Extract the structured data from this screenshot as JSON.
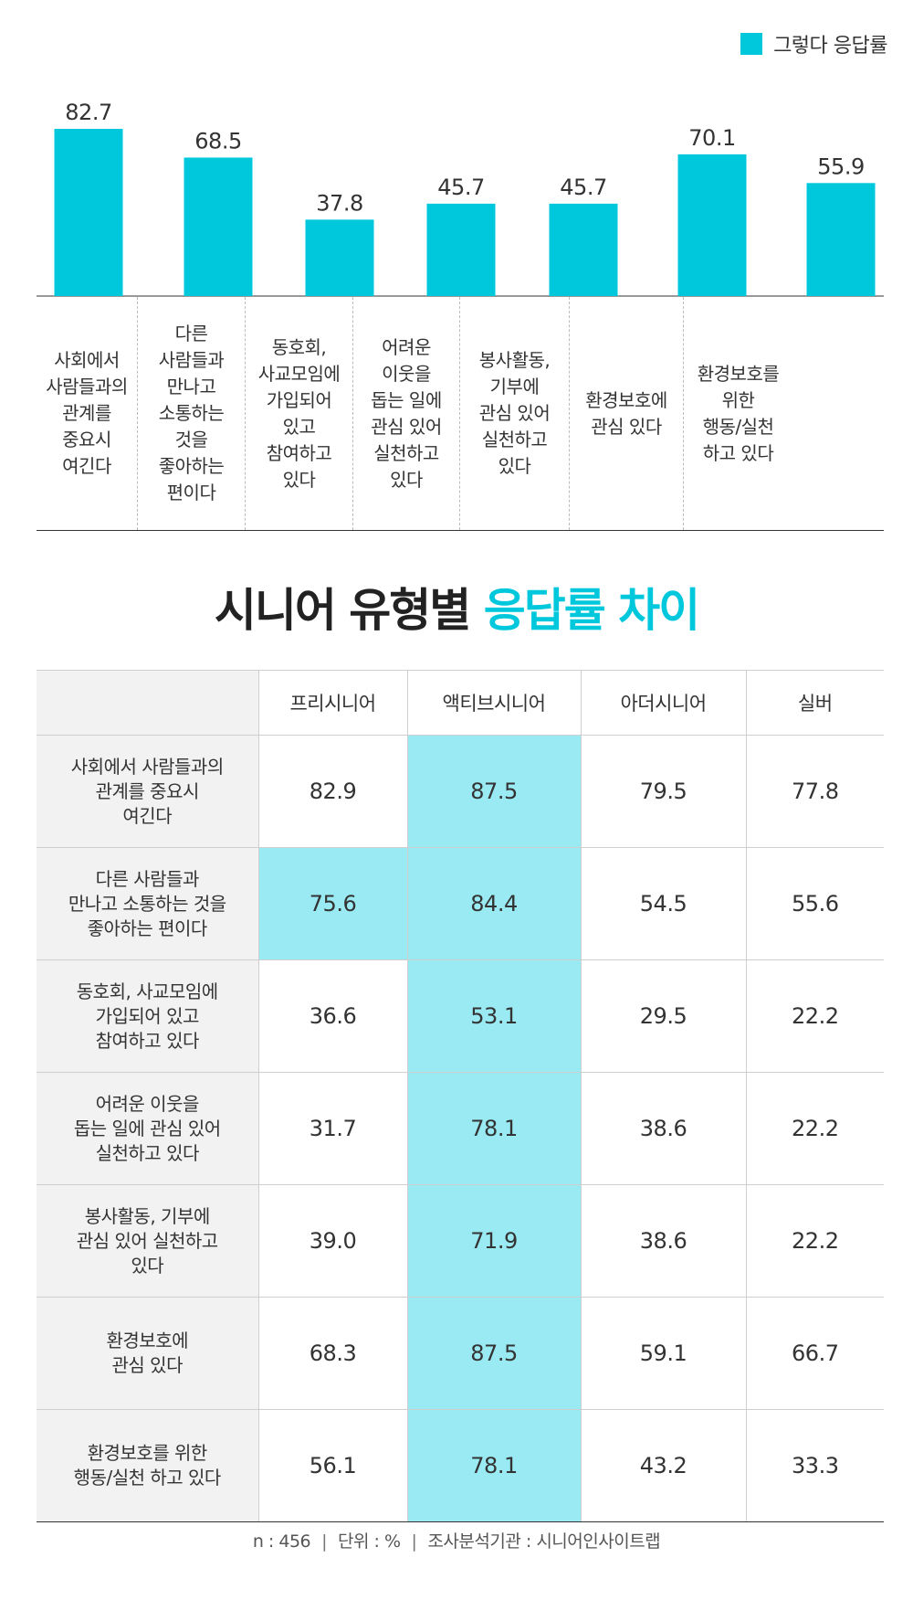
{
  "legend": {
    "label": "그렇다 응답률",
    "color": "#00c8dc"
  },
  "chart_data": {
    "type": "bar",
    "categories": [
      "사회에서\n사람들과의\n관계를\n중요시\n여긴다",
      "다른\n사람들과\n만나고\n소통하는\n것을\n좋아하는\n편이다",
      "동호회,\n사교모임에\n가입되어\n있고\n참여하고\n있다",
      "어려운\n이웃을\n돕는 일에\n관심 있어\n실천하고\n있다",
      "봉사활동,\n기부에\n관심 있어\n실천하고\n있다",
      "환경보호에\n관심 있다",
      "환경보호를\n위한\n행동/실천\n하고 있다"
    ],
    "values": [
      82.7,
      68.5,
      37.8,
      45.7,
      45.7,
      70.1,
      55.9
    ],
    "value_labels": [
      "82.7",
      "68.5",
      "37.8",
      "45.7",
      "45.7",
      "70.1",
      "55.9"
    ],
    "series": [
      {
        "name": "그렇다 응답률",
        "color": "#00c8dc"
      }
    ],
    "ylim": [
      0,
      100
    ],
    "grid": false,
    "legend_position": "top-right"
  },
  "heading": {
    "part1": "시니어 유형별 ",
    "part2": "응답률 차이"
  },
  "table": {
    "columns": [
      "",
      "프리시니어",
      "액티브시니어",
      "아더시니어",
      "실버"
    ],
    "rows": [
      {
        "label": "사회에서 사람들과의\n관계를 중요시\n여긴다",
        "values": [
          "82.9",
          "87.5",
          "79.5",
          "77.8"
        ],
        "highlight": [
          false,
          true,
          false,
          false
        ]
      },
      {
        "label": "다른 사람들과\n만나고 소통하는 것을\n좋아하는 편이다",
        "values": [
          "75.6",
          "84.4",
          "54.5",
          "55.6"
        ],
        "highlight": [
          true,
          true,
          false,
          false
        ]
      },
      {
        "label": "동호회, 사교모임에\n가입되어 있고\n참여하고 있다",
        "values": [
          "36.6",
          "53.1",
          "29.5",
          "22.2"
        ],
        "highlight": [
          false,
          true,
          false,
          false
        ]
      },
      {
        "label": "어려운 이웃을\n돕는 일에 관심 있어\n실천하고 있다",
        "values": [
          "31.7",
          "78.1",
          "38.6",
          "22.2"
        ],
        "highlight": [
          false,
          true,
          false,
          false
        ]
      },
      {
        "label": "봉사활동, 기부에\n관심 있어 실천하고\n있다",
        "values": [
          "39.0",
          "71.9",
          "38.6",
          "22.2"
        ],
        "highlight": [
          false,
          true,
          false,
          false
        ]
      },
      {
        "label": "환경보호에\n관심 있다",
        "values": [
          "68.3",
          "87.5",
          "59.1",
          "66.7"
        ],
        "highlight": [
          false,
          true,
          false,
          false
        ]
      },
      {
        "label": "환경보호를 위한\n행동/실천 하고 있다",
        "values": [
          "56.1",
          "78.1",
          "43.2",
          "33.3"
        ],
        "highlight": [
          false,
          true,
          false,
          false
        ]
      }
    ]
  },
  "footer": {
    "n": "n : 456",
    "unit": "단위 : %",
    "org": "조사분석기관 : 시니어인사이트랩"
  }
}
